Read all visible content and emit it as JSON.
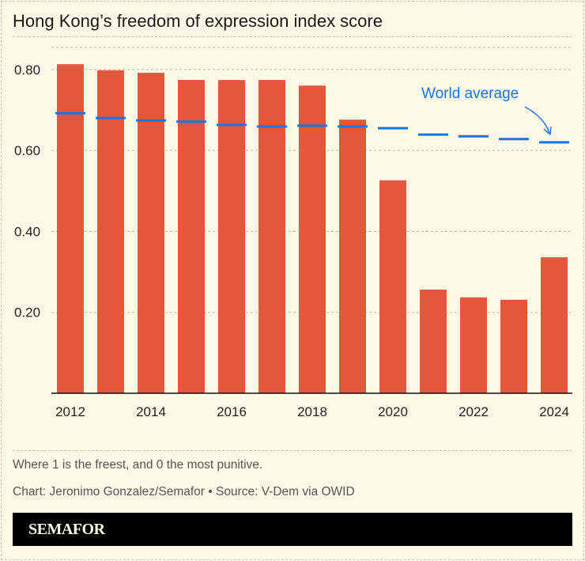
{
  "title": "Hong Kong’s freedom of expression index score",
  "footnote": "Where 1 is the freest, and 0 the most punitive.",
  "credit": "Chart: Jeronimo Gonzalez/Semafor • Source: V-Dem via OWID",
  "brand": "SEMAFOR",
  "chart_data": {
    "type": "bar",
    "title": "Hong Kong’s freedom of expression index score",
    "categories": [
      "2012",
      "2013",
      "2014",
      "2015",
      "2016",
      "2017",
      "2018",
      "2019",
      "2020",
      "2021",
      "2022",
      "2023",
      "2024"
    ],
    "x_tick_labels": [
      "2012",
      "2014",
      "2016",
      "2018",
      "2020",
      "2022",
      "2024"
    ],
    "y_tick_labels": [
      "0.20",
      "0.40",
      "0.60",
      "0.80"
    ],
    "y_ticks": [
      0.2,
      0.4,
      0.6,
      0.8
    ],
    "ylim": [
      0,
      0.83
    ],
    "grid": true,
    "series": [
      {
        "values": [
          0.813,
          0.798,
          0.792,
          0.774,
          0.774,
          0.774,
          0.76,
          0.676,
          0.526,
          0.256,
          0.237,
          0.231,
          0.336
        ],
        "color": "#e5573d"
      },
      {
        "name": "World average",
        "type": "dash",
        "values": [
          0.692,
          0.68,
          0.674,
          0.671,
          0.663,
          0.659,
          0.661,
          0.659,
          0.655,
          0.639,
          0.635,
          0.628,
          0.62
        ],
        "color": "#1a73e8"
      }
    ],
    "annotation": "World average"
  }
}
